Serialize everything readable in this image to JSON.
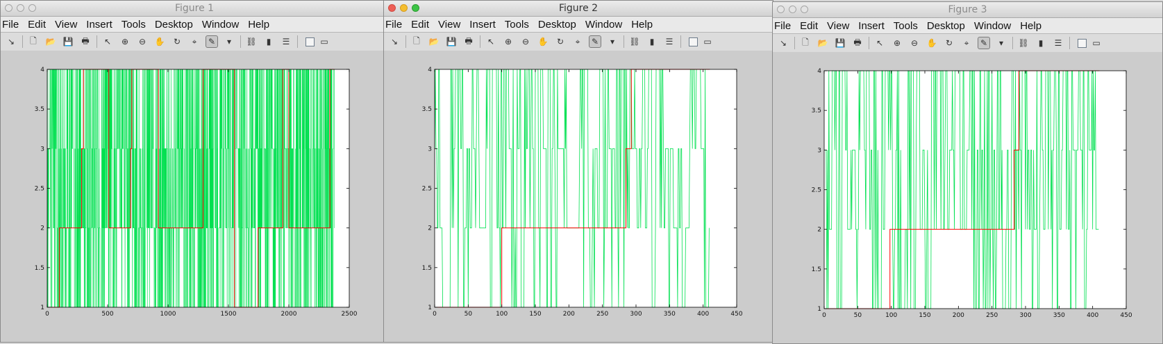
{
  "menus": [
    "File",
    "Edit",
    "View",
    "Insert",
    "Tools",
    "Desktop",
    "Window",
    "Help"
  ],
  "toolbar_icons": [
    "arrow-icon",
    "new-figure-icon",
    "open-icon",
    "save-icon",
    "print-icon",
    "select-pointer-icon",
    "zoom-in-icon",
    "zoom-out-icon",
    "pan-hand-icon",
    "rotate-3d-icon",
    "data-cursor-icon",
    "brush-icon",
    "dropdown-arrow-icon",
    "link-plot-icon",
    "colorbar-icon",
    "legend-icon",
    "hide-plot-tools-icon",
    "show-plot-tools-icon"
  ],
  "colors": {
    "series_green": "#00e050",
    "series_red": "#ff0000"
  },
  "figures": [
    {
      "title": "Figure 1",
      "active": false
    },
    {
      "title": "Figure 2",
      "active": true
    },
    {
      "title": "Figure 3",
      "active": false
    }
  ],
  "chart_data": [
    {
      "type": "line",
      "figure": "Figure 1",
      "xlim": [
        0,
        2500
      ],
      "ylim": [
        1,
        4
      ],
      "xticks": [
        "0",
        "500",
        "1000",
        "1500",
        "2000",
        "2500"
      ],
      "yticks": [
        "1",
        "1.5",
        "2",
        "2.5",
        "3",
        "3.5",
        "4"
      ],
      "grid": false,
      "series": [
        {
          "color": "green",
          "n_points": 2380,
          "levels": [
            1,
            2,
            3,
            4
          ]
        },
        {
          "color": "red",
          "x": [
            0,
            100,
            100,
            285,
            285,
            300,
            300,
            510,
            510,
            690,
            690,
            700,
            700,
            920,
            920,
            1290,
            1290,
            1550,
            1550,
            1745,
            1745,
            1950,
            1950,
            2000,
            2000,
            2340,
            2340,
            2380
          ],
          "y": [
            1,
            1,
            2,
            2,
            3,
            3,
            4,
            4,
            2,
            2,
            3,
            3,
            4,
            4,
            2,
            2,
            4,
            4,
            1,
            1,
            2,
            2,
            4,
            4,
            2,
            2,
            4,
            4
          ]
        }
      ]
    },
    {
      "type": "line",
      "figure": "Figure 2",
      "xlim": [
        0,
        450
      ],
      "ylim": [
        1,
        4
      ],
      "xticks": [
        "0",
        "50",
        "100",
        "150",
        "200",
        "250",
        "300",
        "350",
        "400",
        "450"
      ],
      "yticks": [
        "1",
        "1.5",
        "2",
        "2.5",
        "3",
        "3.5",
        "4"
      ],
      "grid": false,
      "series": [
        {
          "color": "green",
          "n_points": 410,
          "levels": [
            1,
            2,
            3,
            4
          ]
        },
        {
          "color": "red",
          "x": [
            0,
            100,
            100,
            285,
            285,
            293,
            293,
            410
          ],
          "y": [
            1,
            1,
            2,
            2,
            3,
            3,
            4,
            4
          ]
        }
      ]
    },
    {
      "type": "line",
      "figure": "Figure 3",
      "xlim": [
        0,
        450
      ],
      "ylim": [
        1,
        4
      ],
      "xticks": [
        "0",
        "50",
        "100",
        "150",
        "200",
        "250",
        "300",
        "350",
        "400",
        "450"
      ],
      "yticks": [
        "1",
        "1.5",
        "2",
        "2.5",
        "3",
        "3.5",
        "4"
      ],
      "grid": false,
      "series": [
        {
          "color": "green",
          "n_points": 410,
          "levels": [
            1,
            2,
            3,
            4
          ]
        },
        {
          "color": "red",
          "x": [
            0,
            98,
            98,
            283,
            283,
            290,
            290,
            410
          ],
          "y": [
            1,
            1,
            2,
            2,
            3,
            3,
            4,
            4
          ]
        }
      ]
    }
  ]
}
